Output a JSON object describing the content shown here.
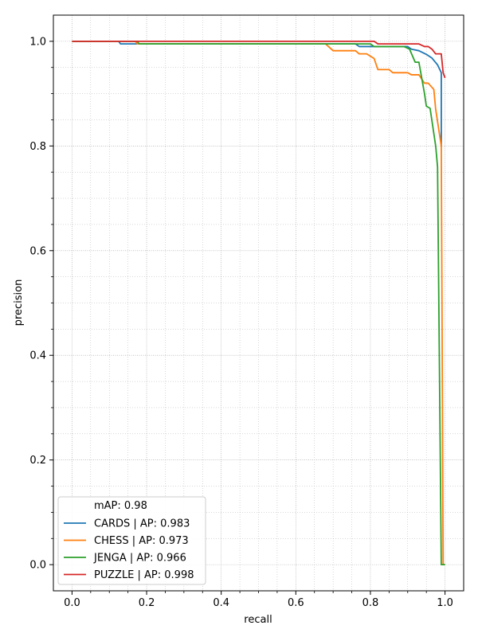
{
  "chart_data": {
    "type": "line",
    "title": "",
    "xlabel": "recall",
    "ylabel": "precision",
    "xlim": [
      -0.05,
      1.05
    ],
    "ylim": [
      -0.05,
      1.05
    ],
    "x_ticks": [
      0.0,
      0.2,
      0.4,
      0.6,
      0.8,
      1.0
    ],
    "x_tick_labels": [
      "0.0",
      "0.2",
      "0.4",
      "0.6",
      "0.8",
      "1.0"
    ],
    "y_ticks": [
      0.0,
      0.2,
      0.4,
      0.6,
      0.8,
      1.0
    ],
    "y_tick_labels": [
      "0.0",
      "0.2",
      "0.4",
      "0.6",
      "0.8",
      "1.0"
    ],
    "grid": true,
    "minor_grid": true,
    "legend_position": "lower-left",
    "legend_header": "mAP: 0.98",
    "series": [
      {
        "name": "CARDS | AP: 0.983",
        "color": "#1f77b4",
        "points": [
          [
            0.0,
            1.0
          ],
          [
            0.125,
            1.0
          ],
          [
            0.13,
            0.995
          ],
          [
            0.7,
            0.995
          ],
          [
            0.76,
            0.995
          ],
          [
            0.77,
            0.99
          ],
          [
            0.9,
            0.99
          ],
          [
            0.91,
            0.985
          ],
          [
            0.93,
            0.982
          ],
          [
            0.95,
            0.975
          ],
          [
            0.965,
            0.968
          ],
          [
            0.98,
            0.955
          ],
          [
            0.99,
            0.94
          ],
          [
            0.99,
            0.8
          ]
        ]
      },
      {
        "name": "CHESS | AP: 0.973",
        "color": "#ff7f0e",
        "points": [
          [
            0.0,
            1.0
          ],
          [
            0.17,
            1.0
          ],
          [
            0.175,
            0.995
          ],
          [
            0.68,
            0.995
          ],
          [
            0.7,
            0.982
          ],
          [
            0.76,
            0.982
          ],
          [
            0.77,
            0.976
          ],
          [
            0.79,
            0.976
          ],
          [
            0.81,
            0.967
          ],
          [
            0.82,
            0.946
          ],
          [
            0.85,
            0.946
          ],
          [
            0.86,
            0.94
          ],
          [
            0.9,
            0.94
          ],
          [
            0.91,
            0.936
          ],
          [
            0.93,
            0.936
          ],
          [
            0.945,
            0.92
          ],
          [
            0.955,
            0.92
          ],
          [
            0.965,
            0.912
          ],
          [
            0.97,
            0.908
          ],
          [
            0.975,
            0.87
          ],
          [
            0.99,
            0.8
          ],
          [
            0.995,
            0.0
          ],
          [
            1.0,
            0.0
          ]
        ]
      },
      {
        "name": "JENGA | AP: 0.966",
        "color": "#2ca02c",
        "points": [
          [
            0.0,
            1.0
          ],
          [
            0.175,
            1.0
          ],
          [
            0.18,
            0.995
          ],
          [
            0.8,
            0.995
          ],
          [
            0.81,
            0.99
          ],
          [
            0.89,
            0.99
          ],
          [
            0.905,
            0.985
          ],
          [
            0.92,
            0.96
          ],
          [
            0.93,
            0.96
          ],
          [
            0.945,
            0.9
          ],
          [
            0.95,
            0.876
          ],
          [
            0.96,
            0.872
          ],
          [
            0.975,
            0.8
          ],
          [
            0.98,
            0.76
          ],
          [
            0.99,
            0.0
          ],
          [
            1.0,
            0.0
          ]
        ]
      },
      {
        "name": "PUZZLE | AP: 0.998",
        "color": "#d62728",
        "points": [
          [
            0.0,
            1.0
          ],
          [
            0.81,
            1.0
          ],
          [
            0.82,
            0.995
          ],
          [
            0.93,
            0.995
          ],
          [
            0.945,
            0.99
          ],
          [
            0.955,
            0.99
          ],
          [
            0.965,
            0.985
          ],
          [
            0.975,
            0.976
          ],
          [
            0.99,
            0.976
          ],
          [
            0.995,
            0.94
          ],
          [
            1.0,
            0.93
          ]
        ]
      }
    ]
  }
}
